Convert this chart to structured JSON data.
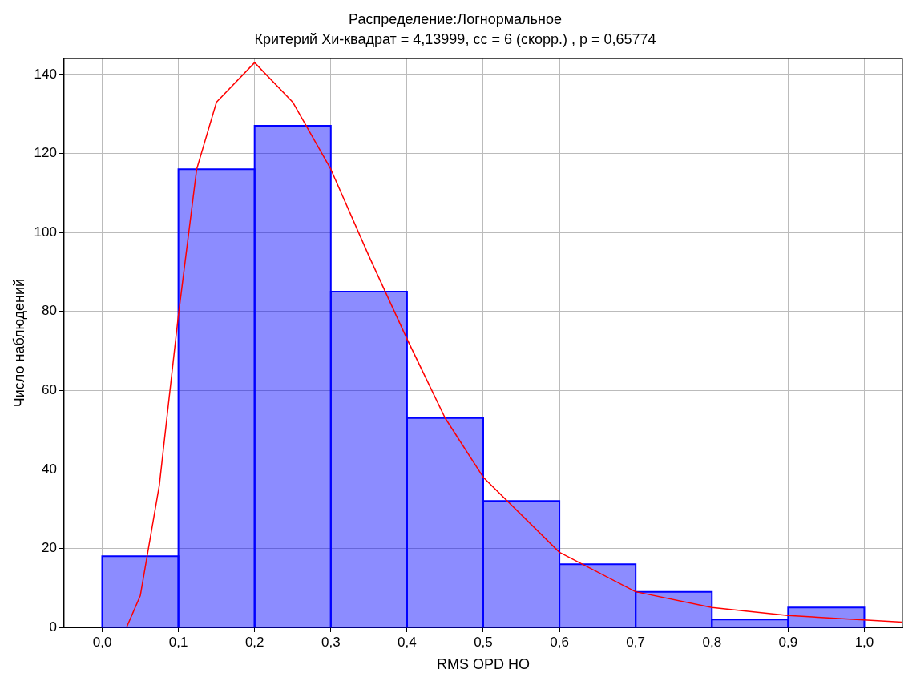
{
  "chart_data": {
    "type": "histogram",
    "title": "Распределение:Логнормальное",
    "subtitle": "Критерий Хи-квадрат = 4,13999, сс = 6 (скорр.) , p = 0,65774",
    "xlabel": "RMS OPD HO",
    "ylabel": "Число наблюдений",
    "bins": [
      0,
      0.1,
      0.2,
      0.3,
      0.4,
      0.5,
      0.6,
      0.7,
      0.8,
      0.9,
      1.0
    ],
    "values": [
      18,
      116,
      127,
      85,
      53,
      32,
      16,
      9,
      2,
      5
    ],
    "color": "#0000ff",
    "series": [
      {
        "type": "line",
        "color": "#ff0000",
        "x": [
          0.032,
          0.05,
          0.075,
          0.1,
          0.124,
          0.15,
          0.2,
          0.25,
          0.3,
          0.35,
          0.4,
          0.45,
          0.5,
          0.6,
          0.7,
          0.8,
          0.9,
          1.05
        ],
        "values": [
          0,
          8,
          36,
          79,
          116,
          133,
          143,
          133,
          116,
          94,
          73,
          53,
          38,
          19,
          9,
          5,
          3,
          1.3
        ]
      }
    ],
    "xlim": [
      -0.05,
      1.05
    ],
    "ylim": [
      0,
      144
    ],
    "xticks": [
      {
        "value": 0,
        "label": "0,0"
      },
      {
        "value": 0.1,
        "label": "0,1"
      },
      {
        "value": 0.2,
        "label": "0,2"
      },
      {
        "value": 0.3,
        "label": "0,3"
      },
      {
        "value": 0.4,
        "label": "0,4"
      },
      {
        "value": 0.5,
        "label": "0,5"
      },
      {
        "value": 0.6,
        "label": "0,6"
      },
      {
        "value": 0.7,
        "label": "0,7"
      },
      {
        "value": 0.8,
        "label": "0,8"
      },
      {
        "value": 0.9,
        "label": "0,9"
      },
      {
        "value": 1.0,
        "label": "1,0"
      }
    ],
    "yticks": [
      0,
      20,
      40,
      60,
      80,
      100,
      120,
      140
    ],
    "grid": true,
    "legend": false,
    "marker": "none",
    "line_style": "solid"
  }
}
